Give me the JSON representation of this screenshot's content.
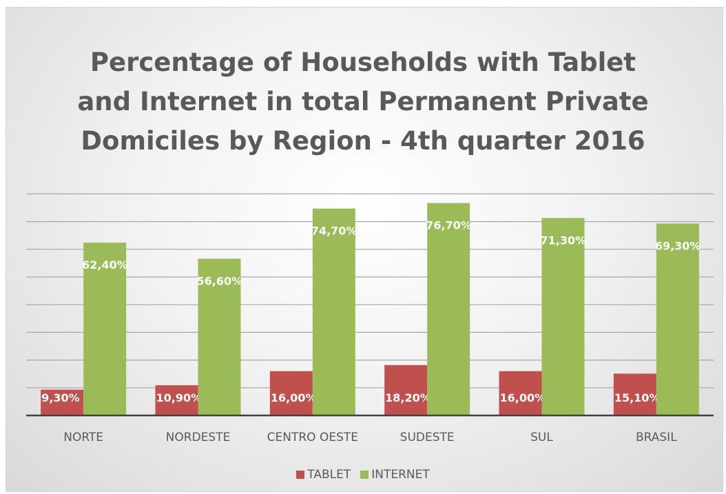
{
  "chart_data": {
    "type": "bar",
    "title_lines": [
      "Percentage of Households with Tablet",
      "and Internet in total Permanent Private",
      "Domiciles by Region - 4th quarter 2016"
    ],
    "categories": [
      "NORTE",
      "NORDESTE",
      "CENTRO OESTE",
      "SUDESTE",
      "SUL",
      "BRASIL"
    ],
    "series": [
      {
        "name": "TABLET",
        "color": "#c0504d",
        "values": [
          9.3,
          10.9,
          16.0,
          18.2,
          16.0,
          15.1
        ],
        "labels": [
          "9,30%",
          "10,90%",
          "16,00%",
          "18,20%",
          "16,00%",
          "15,10%"
        ]
      },
      {
        "name": "INTERNET",
        "color": "#9bbb59",
        "values": [
          62.4,
          56.6,
          74.7,
          76.7,
          71.3,
          69.3
        ],
        "labels": [
          "62,40%",
          "56,60%",
          "74,70%",
          "76,70%",
          "71,30%",
          "69,30%"
        ]
      }
    ],
    "xlabel": "",
    "ylabel": "",
    "ylim": [
      0,
      80
    ],
    "grid": true,
    "legend_position": "bottom"
  }
}
